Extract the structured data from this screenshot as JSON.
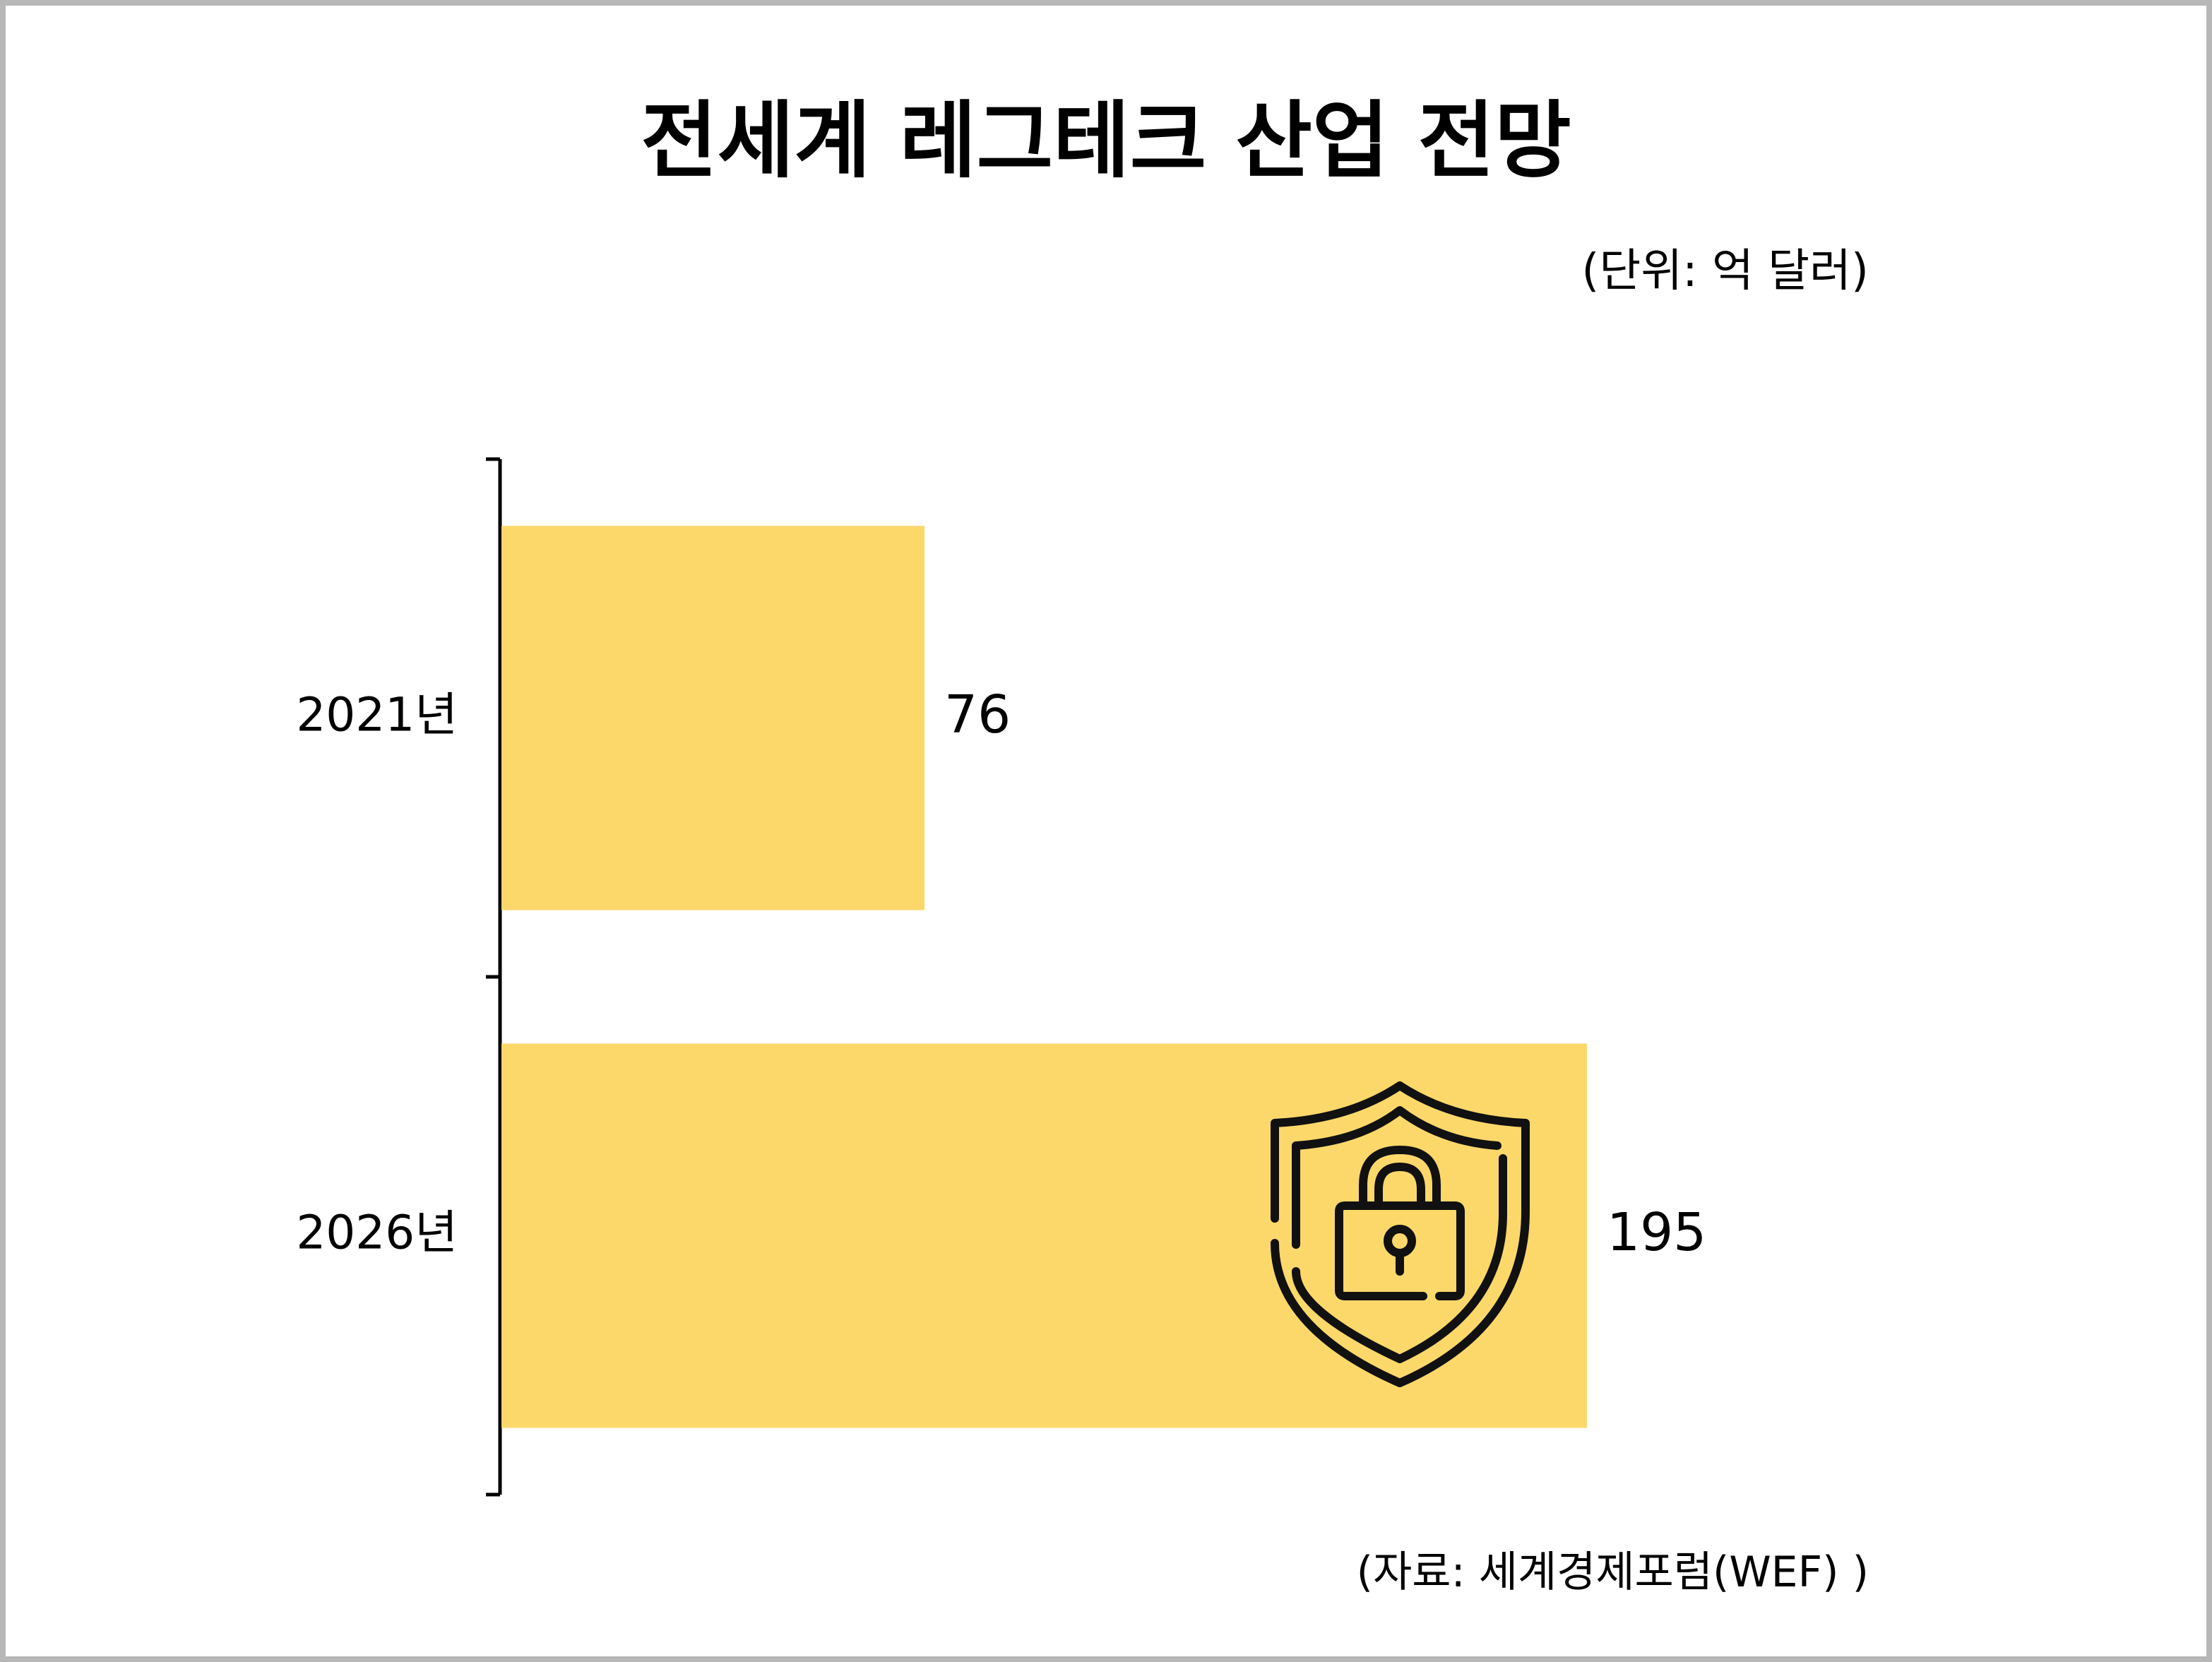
{
  "title": "전세계 레그테크 산업 전망",
  "unit_note": "(단위: 억 달러)",
  "source_note": "(자료: 세계경제포럼(WEF) )",
  "colors": {
    "bar": "#FCD86B",
    "axis": "#000000",
    "text": "#000000",
    "frame": "#b7b7b7"
  },
  "icon": "shield-lock-icon",
  "chart_data": {
    "type": "bar",
    "orientation": "horizontal",
    "categories": [
      "2021년",
      "2026년"
    ],
    "values": [
      76,
      195
    ],
    "value_labels": [
      "76",
      "195"
    ],
    "title": "전세계 레그테크 산업 전망",
    "xlabel": "",
    "ylabel": "",
    "xlim": [
      0,
      195
    ],
    "unit": "억 달러",
    "grid": false,
    "legend": "none"
  }
}
